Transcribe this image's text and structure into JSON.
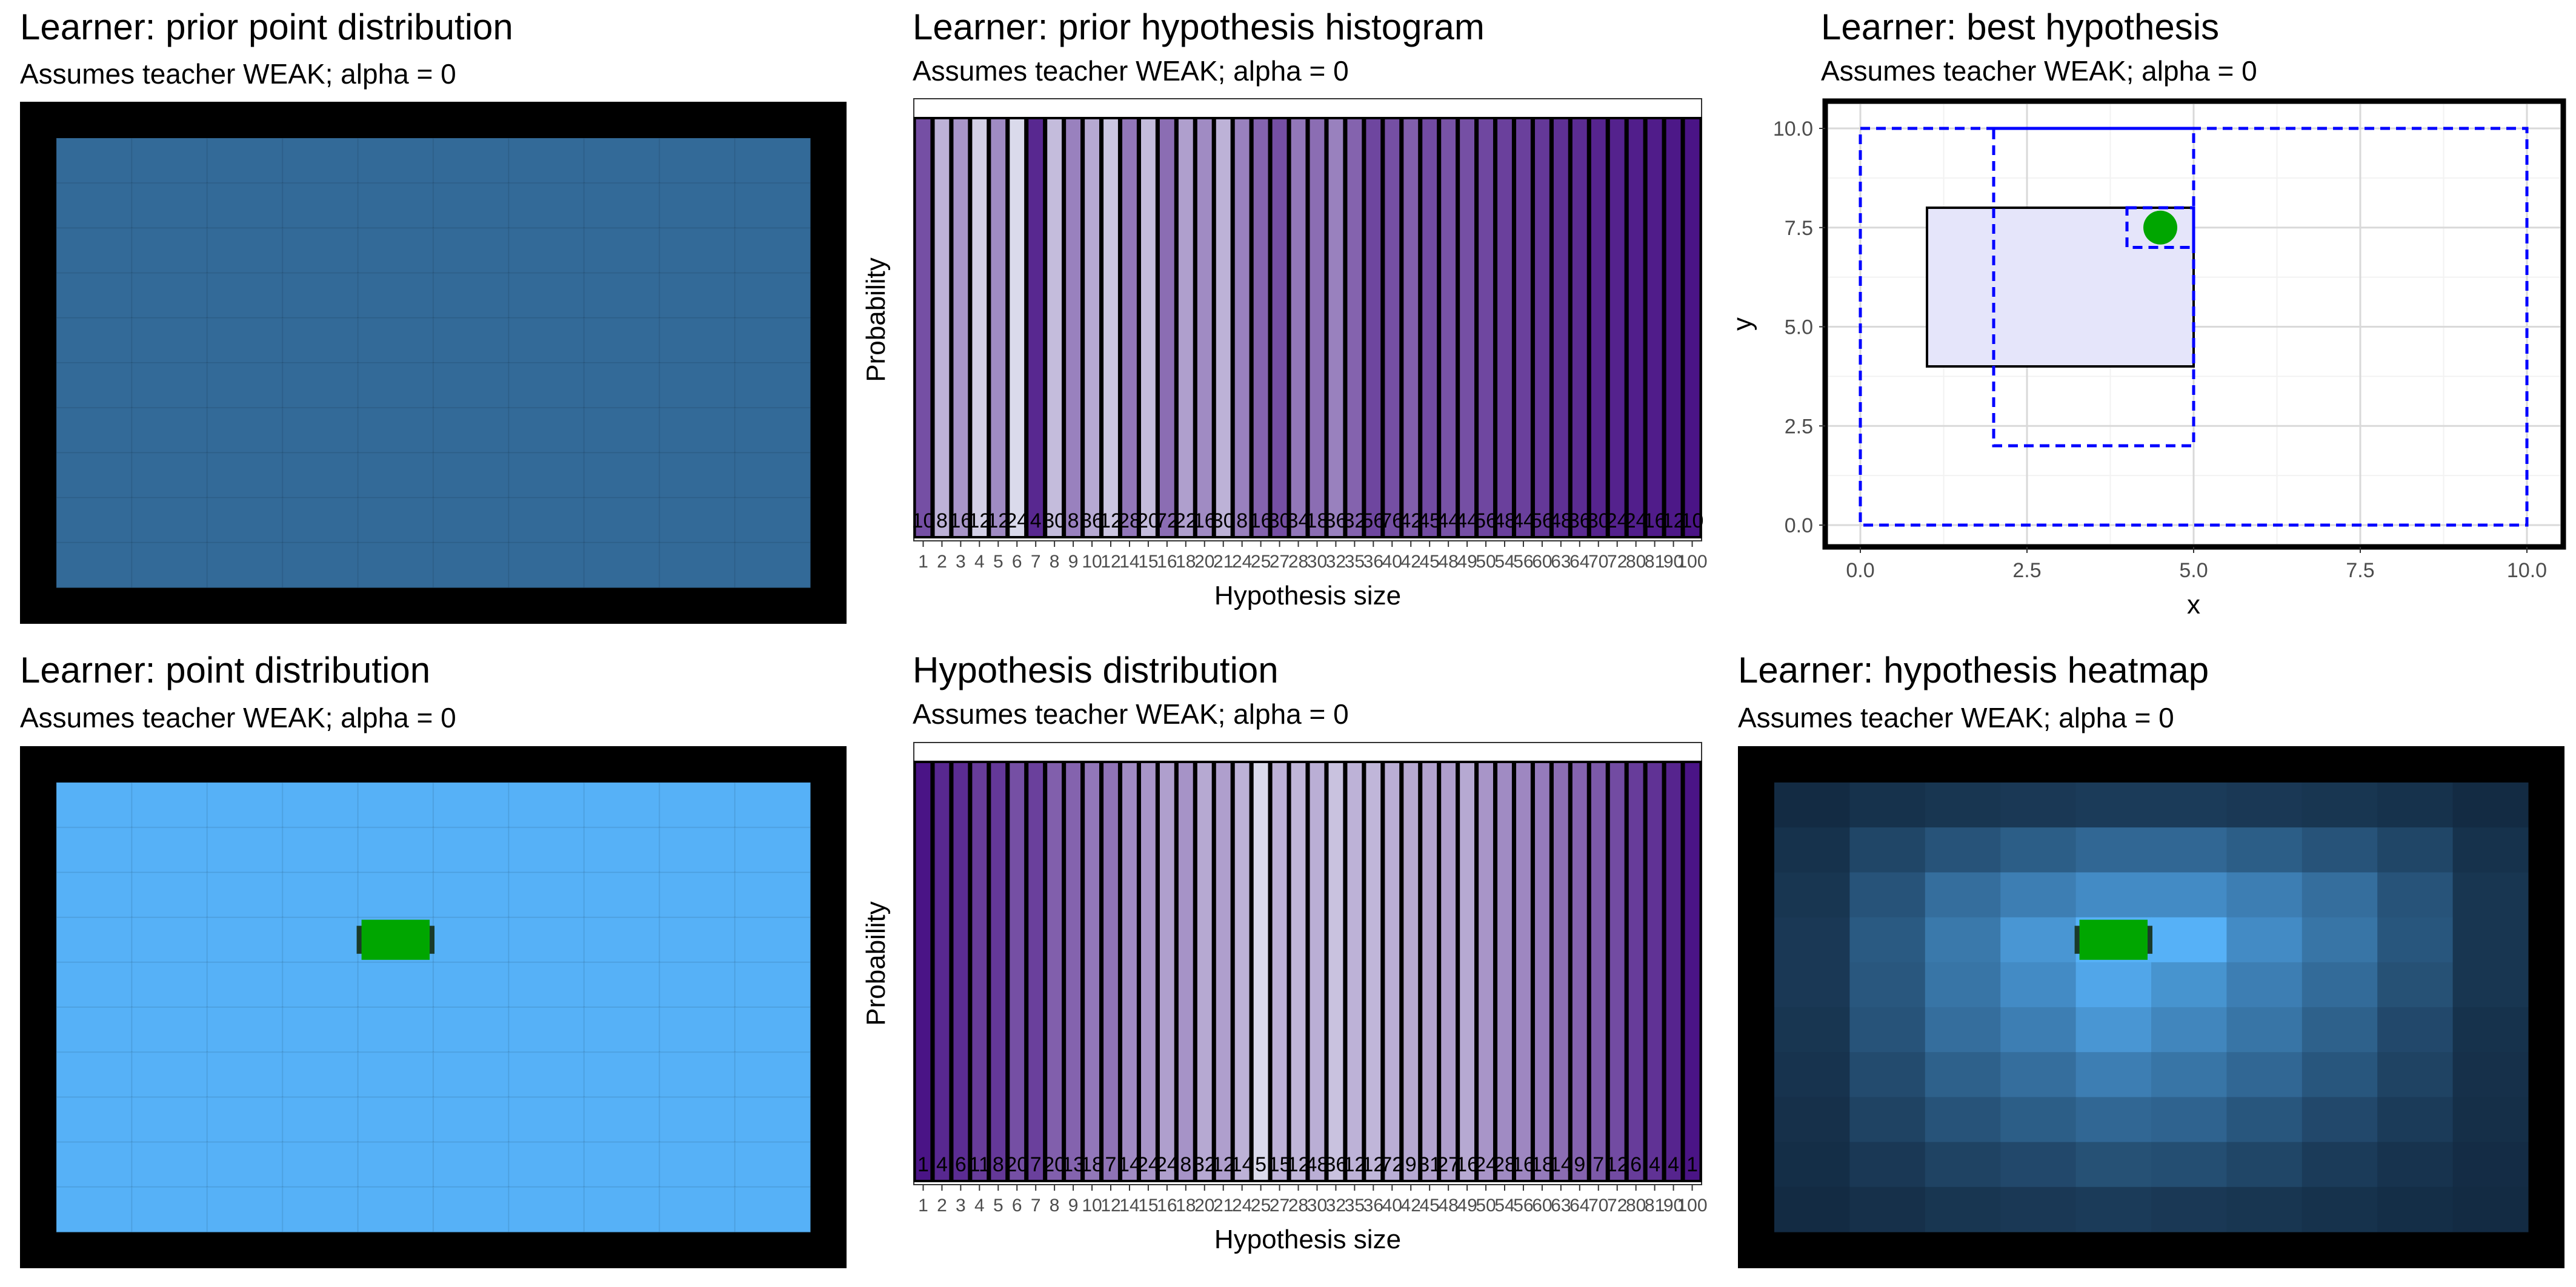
{
  "panels": {
    "tl": {
      "title": "Learner: prior point distribution",
      "subtitle": "Assumes teacher WEAK; alpha = 0"
    },
    "tm": {
      "title": "Learner: prior hypothesis histogram",
      "subtitle": "Assumes teacher WEAK; alpha = 0"
    },
    "tr": {
      "title": "Learner: best hypothesis",
      "subtitle": "Assumes teacher WEAK; alpha = 0"
    },
    "bl": {
      "title": "Learner: point distribution",
      "subtitle": "Assumes teacher WEAK; alpha = 0"
    },
    "bm": {
      "title": "Hypothesis distribution",
      "subtitle": "Assumes teacher WEAK; alpha = 0"
    },
    "br": {
      "title": "Learner: hypothesis heatmap",
      "subtitle": "Assumes teacher WEAK; alpha = 0"
    }
  },
  "colors": {
    "frame": "#000000",
    "uniform_tile": "#336a98",
    "light_tile": "#56b1f7",
    "point_marker": "#00a600",
    "hyp_dashed": "#0000ff",
    "hyp_fill": "#e5e5fa",
    "bar_light": "#dadaeb",
    "bar_dark": "#4a1486"
  },
  "chart_data": [
    {
      "id": "prior-point-distribution",
      "type": "heatmap",
      "grid": [
        10,
        10
      ],
      "values": "uniform",
      "legend": "none"
    },
    {
      "id": "prior-hypothesis-histogram",
      "type": "bar",
      "xlabel": "Hypothesis size",
      "ylabel": "Probability",
      "categories": [
        "1",
        "2",
        "3",
        "4",
        "5",
        "6",
        "7",
        "8",
        "9",
        "10",
        "12",
        "14",
        "15",
        "16",
        "18",
        "20",
        "21",
        "24",
        "25",
        "27",
        "28",
        "30",
        "32",
        "35",
        "36",
        "40",
        "42",
        "45",
        "48",
        "49",
        "50",
        "54",
        "56",
        "60",
        "63",
        "64",
        "70",
        "72",
        "80",
        "81",
        "90",
        "100"
      ],
      "labels": [
        "10",
        "8",
        "16",
        "12",
        "12",
        "24",
        "4",
        "30",
        "8",
        "36",
        "12",
        "28",
        "20",
        "72",
        "22",
        "16",
        "30",
        "8",
        "16",
        "30",
        "34",
        "18",
        "36",
        "32",
        "56",
        "76",
        "42",
        "45",
        "44",
        "44",
        "56",
        "48",
        "44",
        "56",
        "48",
        "36",
        "30",
        "24",
        "24",
        "16",
        "12",
        "10"
      ],
      "shade": [
        0.7,
        0.2,
        0.35,
        0.05,
        0.4,
        0.0,
        0.9,
        0.15,
        0.45,
        0.25,
        0.1,
        0.5,
        0.15,
        0.55,
        0.3,
        0.4,
        0.2,
        0.45,
        0.6,
        0.7,
        0.5,
        0.55,
        0.45,
        0.6,
        0.75,
        0.7,
        0.62,
        0.72,
        0.68,
        0.7,
        0.74,
        0.78,
        0.78,
        0.82,
        0.86,
        0.88,
        0.92,
        0.93,
        0.95,
        0.96,
        0.98,
        1.0
      ],
      "values": "equal"
    },
    {
      "id": "best-hypothesis",
      "type": "scatter",
      "xlabel": "x",
      "ylabel": "y",
      "xlim": [
        0,
        10
      ],
      "ylim": [
        0,
        10
      ],
      "xticks": [
        "0.0",
        "2.5",
        "5.0",
        "7.5",
        "10.0"
      ],
      "yticks": [
        "0.0",
        "2.5",
        "5.0",
        "7.5",
        "10.0"
      ],
      "true_rectangle": {
        "x0": 1,
        "x1": 5,
        "y0": 4,
        "y1": 8
      },
      "hypotheses": [
        {
          "x0": 0,
          "x1": 10,
          "y0": 0,
          "y1": 10
        },
        {
          "x0": 2,
          "x1": 5,
          "y0": 2,
          "y1": 10
        },
        {
          "x0": 4,
          "x1": 5,
          "y0": 7,
          "y1": 8
        }
      ],
      "points": [
        {
          "x": 4.5,
          "y": 7.5
        }
      ]
    },
    {
      "id": "point-distribution",
      "type": "heatmap",
      "grid": [
        10,
        10
      ],
      "values": "uniform",
      "marker": {
        "col": 4,
        "row": 3
      },
      "legend": "none"
    },
    {
      "id": "hypothesis-distribution",
      "type": "bar",
      "xlabel": "Hypothesis size",
      "ylabel": "Probability",
      "categories": [
        "1",
        "2",
        "3",
        "4",
        "5",
        "6",
        "7",
        "8",
        "9",
        "10",
        "12",
        "14",
        "15",
        "16",
        "18",
        "20",
        "21",
        "24",
        "25",
        "27",
        "28",
        "30",
        "32",
        "35",
        "36",
        "40",
        "42",
        "45",
        "48",
        "49",
        "50",
        "54",
        "56",
        "60",
        "63",
        "64",
        "70",
        "72",
        "80",
        "81",
        "90",
        "100"
      ],
      "labels": [
        "1",
        "4",
        "6",
        "11",
        "8",
        "20",
        "7",
        "20",
        "13",
        "18",
        "7",
        "14",
        "24",
        "24",
        "8",
        "32",
        "12",
        "14",
        "5",
        "15",
        "12",
        "48",
        "36",
        "12",
        "12",
        "72",
        "9",
        "31",
        "27",
        "16",
        "24",
        "28",
        "16",
        "18",
        "14",
        "9",
        "7",
        "12",
        "6",
        "4",
        "4",
        "1"
      ],
      "shade": [
        1.0,
        0.9,
        0.88,
        0.8,
        0.82,
        0.7,
        0.78,
        0.62,
        0.6,
        0.5,
        0.52,
        0.4,
        0.35,
        0.3,
        0.36,
        0.25,
        0.3,
        0.2,
        0.0,
        0.2,
        0.18,
        0.22,
        0.12,
        0.2,
        0.18,
        0.22,
        0.25,
        0.28,
        0.3,
        0.25,
        0.35,
        0.4,
        0.42,
        0.48,
        0.55,
        0.6,
        0.65,
        0.72,
        0.8,
        0.85,
        0.92,
        1.0
      ],
      "values": "equal"
    },
    {
      "id": "hypothesis-heatmap",
      "type": "heatmap",
      "grid": [
        10,
        10
      ],
      "values": [
        [
          0.0,
          0.05,
          0.08,
          0.1,
          0.12,
          0.12,
          0.1,
          0.08,
          0.05,
          0.0
        ],
        [
          0.05,
          0.2,
          0.3,
          0.38,
          0.45,
          0.45,
          0.38,
          0.3,
          0.2,
          0.05
        ],
        [
          0.08,
          0.3,
          0.5,
          0.62,
          0.72,
          0.72,
          0.62,
          0.5,
          0.3,
          0.08
        ],
        [
          0.1,
          0.35,
          0.58,
          0.8,
          1.0,
          1.0,
          0.72,
          0.55,
          0.32,
          0.08
        ],
        [
          0.1,
          0.33,
          0.55,
          0.72,
          0.92,
          0.78,
          0.62,
          0.48,
          0.28,
          0.08
        ],
        [
          0.08,
          0.3,
          0.5,
          0.62,
          0.8,
          0.68,
          0.55,
          0.4,
          0.22,
          0.05
        ],
        [
          0.06,
          0.24,
          0.4,
          0.5,
          0.62,
          0.55,
          0.45,
          0.32,
          0.18,
          0.04
        ],
        [
          0.04,
          0.18,
          0.3,
          0.38,
          0.45,
          0.42,
          0.32,
          0.22,
          0.12,
          0.03
        ],
        [
          0.02,
          0.1,
          0.18,
          0.22,
          0.28,
          0.26,
          0.2,
          0.12,
          0.06,
          0.01
        ],
        [
          0.0,
          0.04,
          0.08,
          0.1,
          0.12,
          0.1,
          0.08,
          0.05,
          0.02,
          0.0
        ]
      ],
      "marker": {
        "col": 4,
        "row": 3
      },
      "legend": "none"
    }
  ]
}
